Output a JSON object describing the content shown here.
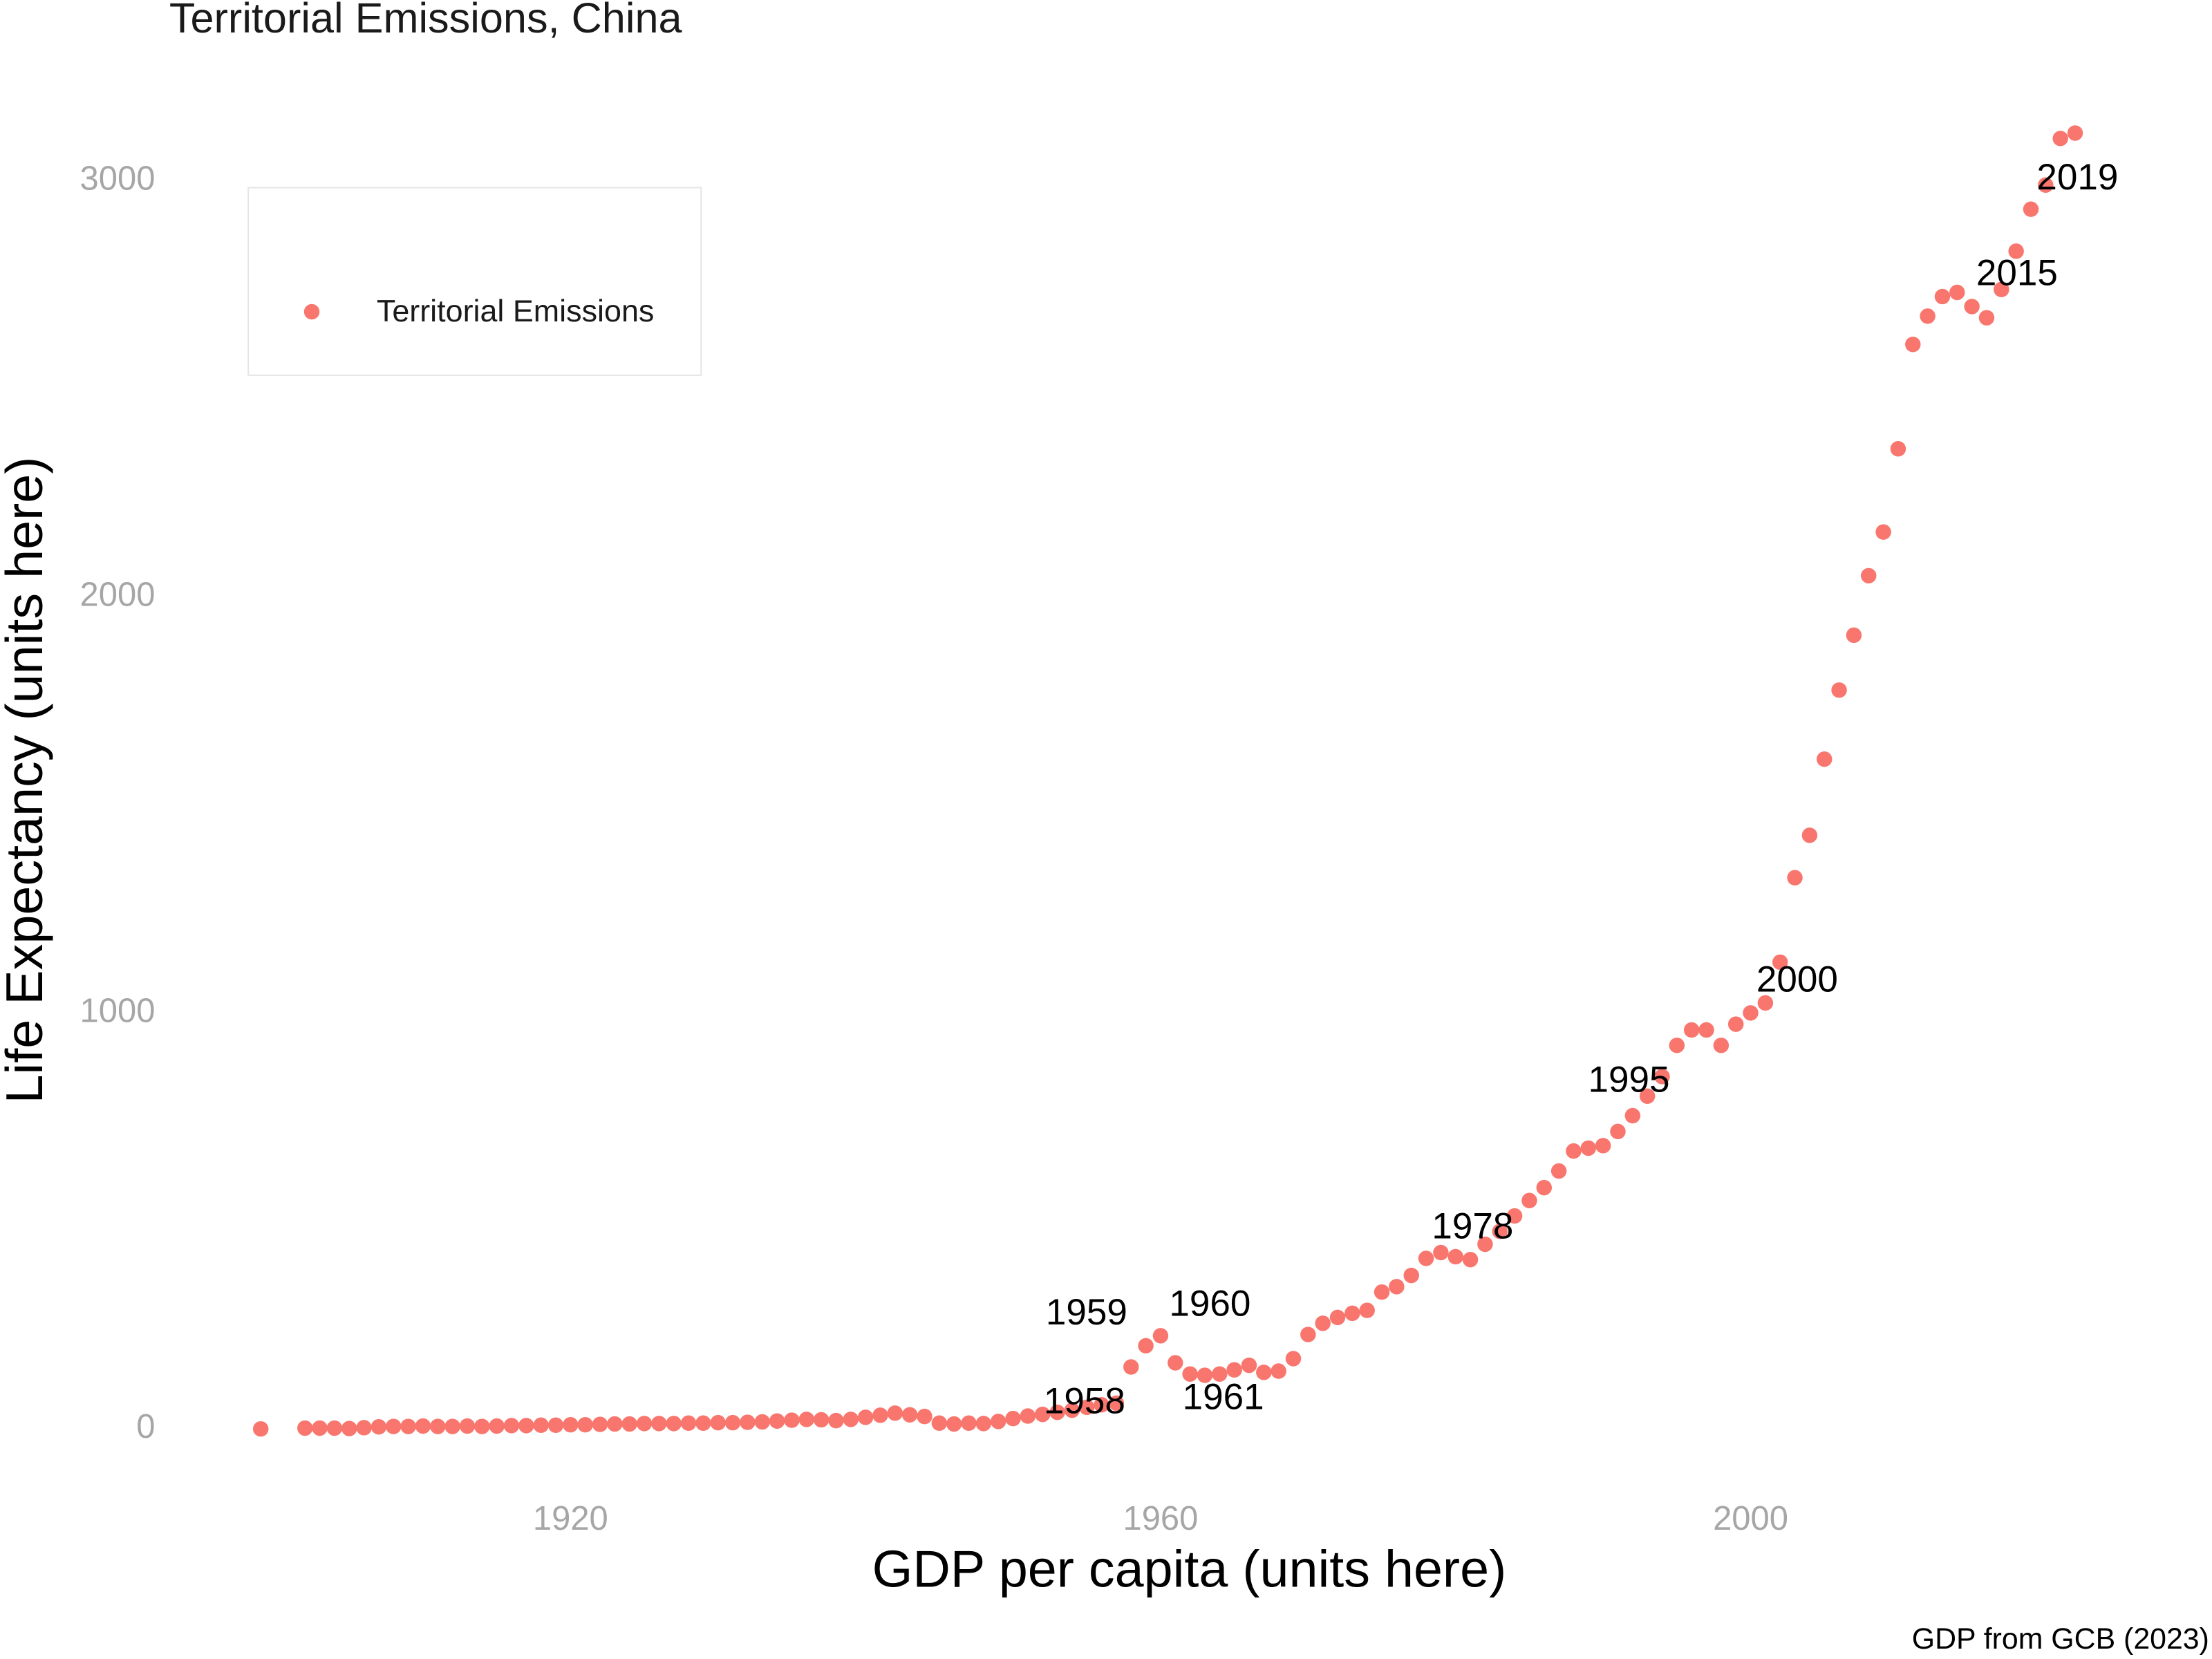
{
  "chart_data": {
    "type": "scatter",
    "title": "Territorial Emissions, China",
    "x_label": "GDP per capita (units here)",
    "y_label": "Life Expectancy (units here)",
    "caption": "GDP from GCB (2023)",
    "legend_position": "top-left",
    "grid": false,
    "xlim": [
      1892.8,
      2028.6
    ],
    "xticks": [
      1920,
      1960,
      2000
    ],
    "ylim": [
      -180,
      3150
    ],
    "yticks": [
      0,
      1000,
      2000,
      3000
    ],
    "x": [
      1899,
      1902,
      1903,
      1904,
      1905,
      1906,
      1907,
      1908,
      1909,
      1910,
      1911,
      1912,
      1913,
      1914,
      1915,
      1916,
      1917,
      1918,
      1919,
      1920,
      1921,
      1922,
      1923,
      1924,
      1925,
      1926,
      1927,
      1928,
      1929,
      1930,
      1931,
      1932,
      1933,
      1934,
      1935,
      1936,
      1937,
      1938,
      1939,
      1940,
      1941,
      1942,
      1943,
      1944,
      1945,
      1946,
      1947,
      1948,
      1949,
      1950,
      1951,
      1952,
      1953,
      1954,
      1955,
      1956,
      1957,
      1958,
      1959,
      1960,
      1961,
      1962,
      1963,
      1964,
      1965,
      1966,
      1967,
      1968,
      1969,
      1970,
      1971,
      1972,
      1973,
      1974,
      1975,
      1976,
      1977,
      1978,
      1979,
      1980,
      1981,
      1982,
      1983,
      1984,
      1985,
      1986,
      1987,
      1988,
      1989,
      1990,
      1991,
      1992,
      1993,
      1994,
      1995,
      1996,
      1997,
      1998,
      1999,
      2000,
      2001,
      2002,
      2003,
      2004,
      2005,
      2006,
      2007,
      2008,
      2009,
      2010,
      2011,
      2012,
      2013,
      2014,
      2015,
      2016,
      2017,
      2018,
      2019,
      2020,
      2021,
      2022
    ],
    "series": [
      {
        "name": "Territorial Emissions",
        "color": "#f8766d",
        "values": [
          0,
          2,
          2,
          2,
          1,
          3,
          5,
          6,
          6,
          7,
          6,
          6,
          7,
          6,
          7,
          8,
          8,
          9,
          9,
          10,
          10,
          11,
          12,
          12,
          13,
          13,
          13,
          14,
          14,
          15,
          15,
          16,
          17,
          19,
          21,
          23,
          22,
          20,
          23,
          28,
          33,
          38,
          34,
          30,
          14,
          12,
          14,
          13,
          18,
          25,
          31,
          35,
          40,
          45,
          52,
          58,
          62,
          149,
          200,
          224,
          159,
          132,
          129,
          132,
          142,
          153,
          136,
          139,
          169,
          227,
          254,
          268,
          278,
          285,
          329,
          342,
          369,
          410,
          424,
          414,
          407,
          444,
          475,
          512,
          549,
          580,
          620,
          668,
          675,
          681,
          715,
          753,
          800,
          847,
          922,
          959,
          959,
          922,
          973,
          1000,
          1024,
          1122,
          1325,
          1427,
          1610,
          1776,
          1908,
          2051,
          2156,
          2356,
          2607,
          2675,
          2722,
          2732,
          2698,
          2671,
          2739,
          2831,
          2932,
          2990,
          3102,
          3115
        ]
      }
    ],
    "annotations": [
      {
        "label": "1958"
      },
      {
        "label": "1959"
      },
      {
        "label": "1960"
      },
      {
        "label": "1961"
      },
      {
        "label": "1978"
      },
      {
        "label": "1995"
      },
      {
        "label": "2000"
      },
      {
        "label": "2015"
      },
      {
        "label": "2019"
      }
    ]
  }
}
